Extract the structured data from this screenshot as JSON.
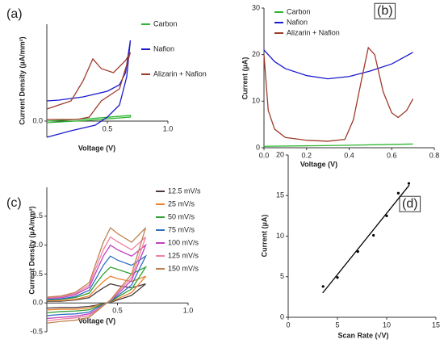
{
  "chart_data": [
    {
      "type": "line",
      "panel_label": "(a)",
      "x_label": "Voltage (V)",
      "y_label": "Current Density (µA/mm²)",
      "xlim": [
        0,
        1.0
      ],
      "ylim": [
        -0.2,
        1.2
      ],
      "xticks": [
        0.5,
        {
          "value": 1,
          "label": "1.0"
        }
      ],
      "yticks": [
        {
          "value": 0,
          "label": "0.0"
        }
      ],
      "series": [
        {
          "name": "Carbon",
          "color": "#2db52d",
          "x": [
            0,
            0.35,
            0.69,
            0.69,
            0.35,
            0
          ],
          "values": [
            0.0,
            0.03,
            0.07,
            0.05,
            0.01,
            -0.02
          ]
        },
        {
          "name": "Nafion",
          "color": "#1a1acc",
          "x": [
            0,
            0.1,
            0.3,
            0.5,
            0.6,
            0.65,
            0.69,
            0.66,
            0.6,
            0.5,
            0.4,
            0.2,
            0
          ],
          "values": [
            0.25,
            0.26,
            0.3,
            0.37,
            0.45,
            0.6,
            1.0,
            0.55,
            0.2,
            0.05,
            -0.05,
            -0.12,
            -0.2
          ]
        },
        {
          "name": "Alizarin + Nafion",
          "color": "#a03a2a",
          "x": [
            0,
            0.2,
            0.3,
            0.38,
            0.45,
            0.55,
            0.65,
            0.69,
            0.6,
            0.5,
            0.45,
            0.4,
            0.35,
            0.25,
            0
          ],
          "values": [
            0.15,
            0.25,
            0.5,
            0.77,
            0.65,
            0.6,
            0.75,
            0.85,
            0.4,
            0.3,
            0.25,
            0.15,
            0.05,
            0.02,
            0.02
          ]
        }
      ]
    },
    {
      "type": "line",
      "panel_label": "(b)",
      "x_label": "Voltage (V)",
      "y_label": "Current (µA)",
      "xlim": [
        0,
        0.8
      ],
      "ylim": [
        0,
        30
      ],
      "xticks": [
        {
          "value": 0,
          "label": "0.0"
        },
        0.2,
        0.4,
        0.6,
        0.8
      ],
      "yticks": [
        0,
        10,
        20,
        30
      ],
      "series": [
        {
          "name": "Carbon",
          "color": "#2db52d",
          "x": [
            0,
            0.35,
            0.7
          ],
          "values": [
            0.3,
            0.5,
            0.8
          ]
        },
        {
          "name": "Nafion",
          "color": "#1a1acc",
          "x": [
            0,
            0.05,
            0.1,
            0.2,
            0.3,
            0.4,
            0.5,
            0.6,
            0.7
          ],
          "values": [
            21,
            18.5,
            17,
            15.5,
            14.8,
            15.3,
            16.5,
            18,
            20.5
          ]
        },
        {
          "name": "Alizarin + Nafion",
          "color": "#a03a2a",
          "x": [
            0,
            0.02,
            0.05,
            0.1,
            0.2,
            0.3,
            0.38,
            0.42,
            0.46,
            0.49,
            0.52,
            0.56,
            0.6,
            0.63,
            0.67,
            0.7
          ],
          "values": [
            20,
            8,
            4,
            2.2,
            1.6,
            1.4,
            1.8,
            6,
            15,
            21.5,
            20,
            12,
            7.5,
            6.5,
            8,
            10.5
          ]
        }
      ]
    },
    {
      "type": "line",
      "panel_label": "(c)",
      "x_label": "Voltage (V)",
      "y_label": "Current Density (µA/mm²)",
      "xlim": [
        0,
        1.0
      ],
      "ylim": [
        -0.5,
        2.0
      ],
      "xticks": [
        0.5,
        {
          "value": 1,
          "label": "1.0"
        }
      ],
      "yticks": [
        -0.5,
        {
          "value": 0,
          "label": "0.0"
        },
        0.5,
        {
          "value": 1,
          "label": "1.0"
        },
        1.5
      ],
      "series": [
        {
          "name": "12.5 mV/s",
          "color": "#4a3a3a",
          "x": [
            0,
            0.1,
            0.2,
            0.3,
            0.35,
            0.4,
            0.45,
            0.5,
            0.6,
            0.7,
            0.7,
            0.6,
            0.5,
            0.45,
            0.4,
            0.35,
            0.3,
            0.2,
            0.1,
            0
          ],
          "values": [
            0.03,
            0.03,
            0.05,
            0.09,
            0.18,
            0.26,
            0.33,
            0.3,
            0.26,
            0.33,
            0.33,
            0.13,
            0.05,
            0.01,
            -0.01,
            -0.04,
            -0.06,
            -0.08,
            -0.08,
            -0.09
          ]
        },
        {
          "name": "25 mV/s",
          "color": "#f08030",
          "x": [
            0,
            0.1,
            0.2,
            0.3,
            0.35,
            0.4,
            0.45,
            0.5,
            0.6,
            0.7,
            0.7,
            0.6,
            0.5,
            0.45,
            0.4,
            0.35,
            0.3,
            0.2,
            0.1,
            0
          ],
          "values": [
            0.04,
            0.04,
            0.06,
            0.12,
            0.25,
            0.37,
            0.46,
            0.42,
            0.37,
            0.46,
            0.46,
            0.18,
            0.07,
            0.02,
            -0.02,
            -0.05,
            -0.09,
            -0.11,
            -0.11,
            -0.12
          ]
        },
        {
          "name": "50 mV/s",
          "color": "#30a030",
          "x": [
            0,
            0.1,
            0.2,
            0.3,
            0.35,
            0.4,
            0.45,
            0.5,
            0.6,
            0.7,
            0.7,
            0.6,
            0.5,
            0.45,
            0.4,
            0.35,
            0.3,
            0.2,
            0.1,
            0
          ],
          "values": [
            0.05,
            0.06,
            0.09,
            0.17,
            0.34,
            0.5,
            0.62,
            0.58,
            0.5,
            0.62,
            0.62,
            0.24,
            0.1,
            0.02,
            -0.02,
            -0.07,
            -0.12,
            -0.14,
            -0.15,
            -0.17
          ]
        },
        {
          "name": "75 mV/s",
          "color": "#3070c0",
          "x": [
            0,
            0.1,
            0.2,
            0.3,
            0.35,
            0.4,
            0.45,
            0.5,
            0.6,
            0.7,
            0.7,
            0.6,
            0.5,
            0.45,
            0.4,
            0.35,
            0.3,
            0.2,
            0.1,
            0
          ],
          "values": [
            0.06,
            0.07,
            0.11,
            0.22,
            0.43,
            0.65,
            0.81,
            0.74,
            0.65,
            0.81,
            0.81,
            0.31,
            0.12,
            0.03,
            -0.03,
            -0.09,
            -0.16,
            -0.19,
            -0.2,
            -0.22
          ]
        },
        {
          "name": "100 mV/s",
          "color": "#c040c0",
          "x": [
            0,
            0.1,
            0.2,
            0.3,
            0.35,
            0.4,
            0.45,
            0.5,
            0.6,
            0.7,
            0.7,
            0.6,
            0.5,
            0.45,
            0.4,
            0.35,
            0.3,
            0.2,
            0.1,
            0
          ],
          "values": [
            0.08,
            0.09,
            0.14,
            0.27,
            0.54,
            0.81,
            1.0,
            0.92,
            0.81,
            1.0,
            1.0,
            0.39,
            0.15,
            0.04,
            -0.04,
            -0.12,
            -0.19,
            -0.23,
            -0.25,
            -0.27
          ]
        },
        {
          "name": "125 mV/s",
          "color": "#f080a0",
          "x": [
            0,
            0.1,
            0.2,
            0.3,
            0.35,
            0.4,
            0.45,
            0.5,
            0.6,
            0.7,
            0.7,
            0.6,
            0.5,
            0.45,
            0.4,
            0.35,
            0.3,
            0.2,
            0.1,
            0
          ],
          "values": [
            0.09,
            0.11,
            0.16,
            0.31,
            0.62,
            0.92,
            1.14,
            1.06,
            0.92,
            1.14,
            1.14,
            0.44,
            0.18,
            0.04,
            -0.04,
            -0.13,
            -0.22,
            -0.26,
            -0.28,
            -0.31
          ]
        },
        {
          "name": "150 mV/s",
          "color": "#c08050",
          "x": [
            0,
            0.1,
            0.2,
            0.3,
            0.35,
            0.4,
            0.45,
            0.5,
            0.6,
            0.7,
            0.7,
            0.6,
            0.5,
            0.45,
            0.4,
            0.35,
            0.3,
            0.2,
            0.1,
            0
          ],
          "values": [
            0.1,
            0.12,
            0.18,
            0.35,
            0.7,
            1.05,
            1.3,
            1.2,
            1.05,
            1.3,
            1.3,
            0.5,
            0.2,
            0.05,
            -0.05,
            -0.15,
            -0.25,
            -0.3,
            -0.32,
            -0.35
          ]
        }
      ]
    },
    {
      "type": "scatter",
      "panel_label": "(d)",
      "x_label": "Scan Rate (√V)",
      "y_label": "Current (µA)",
      "xlim": [
        0,
        15
      ],
      "ylim": [
        0,
        20
      ],
      "xticks": [
        0,
        5,
        10,
        15
      ],
      "yticks": [
        0,
        5,
        10,
        15,
        20
      ],
      "color": "#000000",
      "x": [
        3.54,
        5,
        7.07,
        8.66,
        10,
        11.18,
        12.25
      ],
      "values": [
        3.8,
        4.9,
        8.1,
        10.1,
        12.5,
        15.3,
        16.5
      ],
      "fit_line": {
        "x": [
          3.5,
          12.3
        ],
        "values": [
          3.0,
          16.3
        ]
      }
    }
  ]
}
